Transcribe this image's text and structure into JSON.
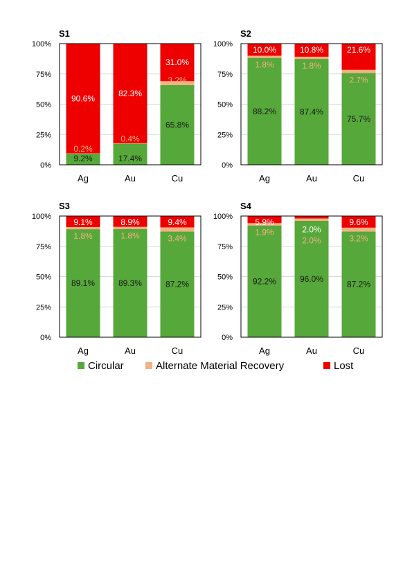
{
  "colors": {
    "circular": "#56a83a",
    "alternate": "#f4b183",
    "lost": "#ee0000",
    "grid": "#d9d9d9",
    "axis": "#000000",
    "label_dark": "#1a1a1a",
    "label_light": "#ffffff",
    "label_alt": "#f4b183"
  },
  "legend": [
    {
      "key": "circular",
      "label": "Circular"
    },
    {
      "key": "alternate",
      "label": "Alternate Material Recovery"
    },
    {
      "key": "lost",
      "label": "Lost"
    }
  ],
  "chart_data": [
    {
      "type": "bar",
      "stacked": true,
      "title": "S1",
      "categories": [
        "Ag",
        "Au",
        "Cu"
      ],
      "yticks": [
        "0%",
        "25%",
        "50%",
        "75%",
        "100%"
      ],
      "ylim": [
        0,
        100
      ],
      "series": [
        {
          "name": "Circular",
          "values": [
            9.2,
            17.4,
            65.8
          ],
          "labels": [
            "9.2%",
            "17.4%",
            "65.8%"
          ]
        },
        {
          "name": "Alternate Material Recovery",
          "values": [
            0.2,
            0.4,
            3.2
          ],
          "labels": [
            "0.2%",
            "0.4%",
            "3.2%"
          ]
        },
        {
          "name": "Lost",
          "values": [
            90.6,
            82.3,
            31.0
          ],
          "labels": [
            "90.6%",
            "82.3%",
            "31.0%"
          ]
        }
      ]
    },
    {
      "type": "bar",
      "stacked": true,
      "title": "S2",
      "categories": [
        "Ag",
        "Au",
        "Cu"
      ],
      "yticks": [
        "0%",
        "25%",
        "50%",
        "75%",
        "100%"
      ],
      "ylim": [
        0,
        100
      ],
      "series": [
        {
          "name": "Circular",
          "values": [
            88.2,
            87.4,
            75.7
          ],
          "labels": [
            "88.2%",
            "87.4%",
            "75.7%"
          ]
        },
        {
          "name": "Alternate Material Recovery",
          "values": [
            1.8,
            1.8,
            2.7
          ],
          "labels": [
            "1.8%",
            "1.8%",
            "2.7%"
          ]
        },
        {
          "name": "Lost",
          "values": [
            10.0,
            10.8,
            21.6
          ],
          "labels": [
            "10.0%",
            "10.8%",
            "21.6%"
          ]
        }
      ]
    },
    {
      "type": "bar",
      "stacked": true,
      "title": "S3",
      "categories": [
        "Ag",
        "Au",
        "Cu"
      ],
      "yticks": [
        "0%",
        "25%",
        "50%",
        "75%",
        "100%"
      ],
      "ylim": [
        0,
        100
      ],
      "series": [
        {
          "name": "Circular",
          "values": [
            89.1,
            89.3,
            87.2
          ],
          "labels": [
            "89.1%",
            "89.3%",
            "87.2%"
          ]
        },
        {
          "name": "Alternate Material Recovery",
          "values": [
            1.8,
            1.8,
            3.4
          ],
          "labels": [
            "1.8%",
            "1.8%",
            "3.4%"
          ]
        },
        {
          "name": "Lost",
          "values": [
            9.1,
            8.9,
            9.4
          ],
          "labels": [
            "9.1%",
            "8.9%",
            "9.4%"
          ]
        }
      ]
    },
    {
      "type": "bar",
      "stacked": true,
      "title": "S4",
      "categories": [
        "Ag",
        "Au",
        "Cu"
      ],
      "yticks": [
        "0%",
        "25%",
        "50%",
        "75%",
        "100%"
      ],
      "ylim": [
        0,
        100
      ],
      "series": [
        {
          "name": "Circular",
          "values": [
            92.2,
            96.0,
            87.2
          ],
          "labels": [
            "92.2%",
            "96.0%",
            "87.2%"
          ]
        },
        {
          "name": "Alternate Material Recovery",
          "values": [
            1.9,
            2.0,
            3.2
          ],
          "labels": [
            "1.9%",
            "2.0%",
            "3.2%"
          ]
        },
        {
          "name": "Lost",
          "values": [
            5.9,
            2.0,
            9.6
          ],
          "labels": [
            "5.9%",
            "2.0%",
            "9.6%"
          ]
        }
      ]
    }
  ]
}
